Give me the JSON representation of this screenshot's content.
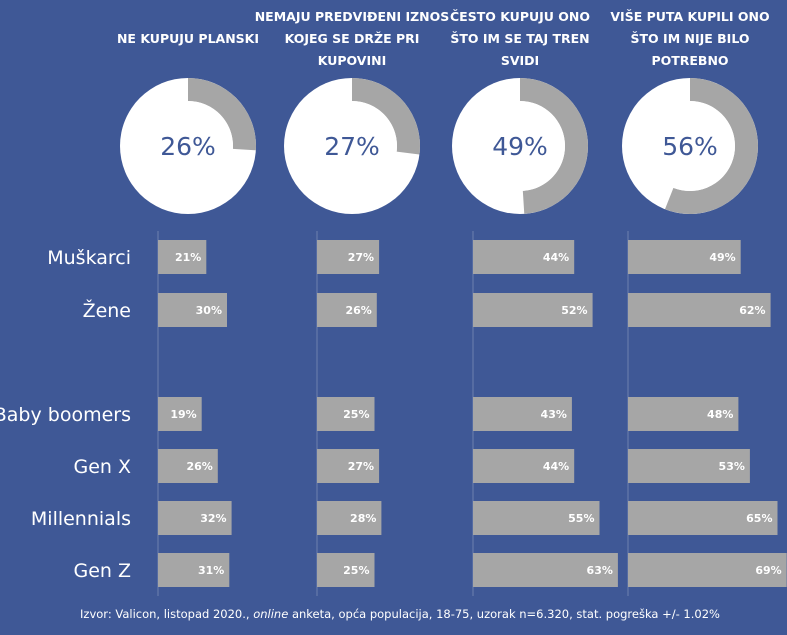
{
  "chart_data": {
    "type": "bar",
    "donut": {
      "type": "pie",
      "categories": [
        "NE KUPUJU PLANSKI",
        "NEMAJU PREDVIĐENI IZNOS KOJEG SE DRŽE PRI KUPOVINI",
        "ČESTO KUPUJU ONO ŠTO IM SE TAJ TREN SVIDI",
        "VIŠE PUTA KUPILI ONO ŠTO IM NIJE BILO POTREBNO"
      ],
      "values": [
        26,
        27,
        49,
        56
      ],
      "value_labels": [
        "26%",
        "27%",
        "49%",
        "56%"
      ]
    },
    "columns": [
      {
        "header_lines": [
          "NE KUPUJU PLANSKI"
        ]
      },
      {
        "header_lines": [
          "NEMAJU PREDVIĐENI IZNOS",
          "KOJEG SE DRŽE PRI",
          "KUPOVINI"
        ]
      },
      {
        "header_lines": [
          "ČESTO KUPUJU ONO",
          "ŠTO IM SE TAJ TREN",
          "SVIDI"
        ]
      },
      {
        "header_lines": [
          "VIŠE PUTA KUPILI ONO",
          "ŠTO IM NIJE BILO",
          "POTREBNO"
        ]
      }
    ],
    "categories": [
      "Muškarci",
      "Žene",
      "Baby boomers",
      "Gen X",
      "Millennials",
      "Gen Z"
    ],
    "series": [
      {
        "values": [
          21,
          30,
          19,
          26,
          32,
          31
        ],
        "labels": [
          "21%",
          "30%",
          "19%",
          "26%",
          "32%",
          "31%"
        ]
      },
      {
        "values": [
          27,
          26,
          25,
          27,
          28,
          25
        ],
        "labels": [
          "27%",
          "26%",
          "25%",
          "27%",
          "28%",
          "25%"
        ]
      },
      {
        "values": [
          44,
          52,
          43,
          44,
          55,
          63
        ],
        "labels": [
          "44%",
          "52%",
          "43%",
          "44%",
          "55%",
          "63%"
        ]
      },
      {
        "values": [
          49,
          62,
          48,
          53,
          65,
          69
        ],
        "labels": [
          "49%",
          "62%",
          "48%",
          "53%",
          "65%",
          "69%"
        ]
      }
    ],
    "xlim": [
      0,
      100
    ],
    "grid": false,
    "source_parts": [
      "Izvor: Valicon, listopad 2020., ",
      "online",
      " anketa, opća populacija, 18-75, uzorak n=6.320, stat. pogreška +/- 1.02%"
    ],
    "colors": {
      "background": "#3f5896",
      "bar": "#a6a6a6",
      "donut_ring": "#ffffff",
      "donut_fill": "#a6a6a6",
      "text": "#ffffff",
      "percent_text": "#3f5896"
    }
  }
}
